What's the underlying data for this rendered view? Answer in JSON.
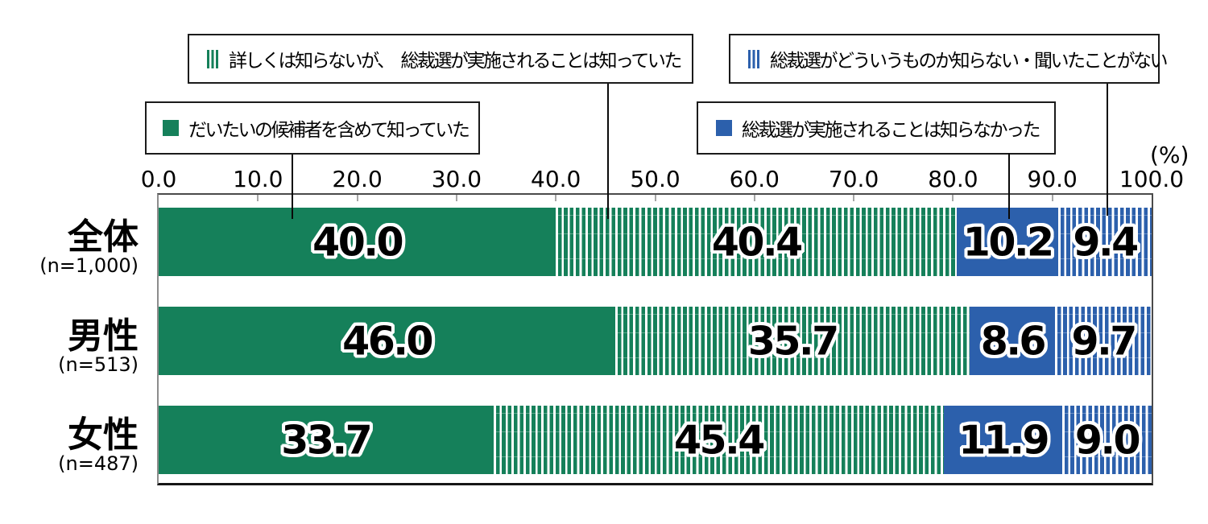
{
  "percent_label": "(%)",
  "colors": {
    "green": "#15805A",
    "blue": "#2C60AC"
  },
  "legend": [
    {
      "label": "だいたいの候補者を含めて知っていた",
      "pattern": "solid",
      "color": "green"
    },
    {
      "label": "詳しくは知らないが、　総裁選が実施されることは知っていた",
      "pattern": "striped",
      "color": "green"
    },
    {
      "label": "総裁選が実施されることは知らなかった",
      "pattern": "solid",
      "color": "blue"
    },
    {
      "label": "総裁選がどういうものか知らない・聞いたことがない",
      "pattern": "striped",
      "color": "blue"
    }
  ],
  "chart_data": {
    "type": "bar",
    "subtype": "horizontal-stacked",
    "unit": "%",
    "xlim": [
      0,
      100
    ],
    "xticks": [
      0,
      10,
      20,
      30,
      40,
      50,
      60,
      70,
      80,
      90,
      100
    ],
    "categories": [
      "全体",
      "男性",
      "女性"
    ],
    "category_n": [
      "(n=1,000)",
      "(n=513)",
      "(n=487)"
    ],
    "series": [
      {
        "name": "だいたいの候補者を含めて知っていた",
        "style": "green-solid",
        "values": [
          40.0,
          46.0,
          33.7
        ]
      },
      {
        "name": "詳しくは知らないが、　総裁選が実施されることは知っていた",
        "style": "green-striped",
        "values": [
          40.4,
          35.7,
          45.4
        ]
      },
      {
        "name": "総裁選が実施されることは知らなかった",
        "style": "blue-solid",
        "values": [
          10.2,
          8.6,
          11.9
        ]
      },
      {
        "name": "総裁選がどういうものか知らない・聞いたことがない",
        "style": "blue-striped",
        "values": [
          9.4,
          9.7,
          9.0
        ]
      }
    ]
  }
}
